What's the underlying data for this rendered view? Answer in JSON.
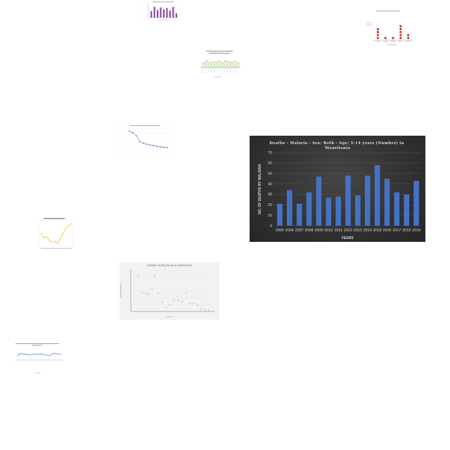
{
  "chart_data": [
    {
      "type": "bar",
      "title": "Deaths - Malaria - Sex: Both - Age: 5-14 years (Number) in Mauritania",
      "xlabel": "YEARS",
      "ylabel": "NO. OF DEATHS BY MALARIA",
      "categories": [
        "2005",
        "2006",
        "2007",
        "2008",
        "2009",
        "2010",
        "2011",
        "2012",
        "2013",
        "2014",
        "2015",
        "2016",
        "2017",
        "2018",
        "2019"
      ],
      "values": [
        21,
        34,
        21,
        32,
        47,
        27,
        28,
        48,
        29,
        48,
        58,
        45,
        32,
        30,
        43
      ],
      "yticks": [
        "0",
        "10",
        "20",
        "30",
        "40",
        "50",
        "60",
        "70"
      ],
      "ylim": [
        0,
        70
      ],
      "grid": true,
      "bar_color": "#4472c4"
    },
    {
      "type": "bar",
      "title": "",
      "categories": [
        "",
        "",
        "",
        "",
        "",
        "",
        "",
        "",
        ""
      ],
      "values": [
        0.5,
        0.85,
        0.6,
        0.8,
        0.65,
        0.75,
        0.55,
        0.85,
        0.35
      ],
      "bar_color": "#8e44ad"
    },
    {
      "type": "scatter",
      "title": "",
      "categories": [
        "",
        "",
        "",
        "",
        ""
      ],
      "values": [
        4,
        1,
        1,
        5,
        2
      ],
      "marker_color": "#c0392b"
    },
    {
      "type": "bar",
      "title": "",
      "values": [
        0.45,
        0.7,
        0.5,
        0.6,
        0.55,
        0.65,
        0.5,
        0.7,
        0.6,
        0.55,
        0.65,
        0.5
      ],
      "bar_color": "#7cb342"
    },
    {
      "type": "line",
      "title": "",
      "values": [
        0.9,
        0.82,
        0.7,
        0.45,
        0.38,
        0.33,
        0.3,
        0.27,
        0.24,
        0.22,
        0.2,
        0.19
      ],
      "line_color": "#5b7db1"
    },
    {
      "type": "line",
      "title": "",
      "values": [
        0.55,
        0.35,
        0.4,
        0.25,
        0.15,
        0.2,
        0.1,
        0.35,
        0.55,
        0.75,
        0.85,
        0.95
      ],
      "line_color": "#f0b400"
    },
    {
      "type": "scatter",
      "title": "Inflation during the year Switzerland",
      "x": [
        1961,
        1964,
        1967,
        1969,
        1972,
        1974,
        1977,
        1980,
        1983,
        1986,
        1989,
        1993,
        1996,
        1999,
        2002,
        2005,
        2008,
        2011,
        2014,
        2017
      ],
      "y": [
        0.92,
        0.45,
        0.44,
        0.42,
        0.55,
        0.9,
        0.44,
        0.2,
        0.08,
        0.13,
        0.25,
        0.26,
        0.22,
        0.45,
        0.18,
        0.18,
        0.12,
        0.03,
        0.0,
        0.0
      ],
      "marker_color": "#7f7f7f"
    },
    {
      "type": "line",
      "title": "",
      "values": [
        0.55,
        0.75,
        0.7,
        0.6,
        0.7,
        0.65,
        0.72,
        0.6,
        0.5,
        0.8,
        0.7,
        0.65
      ],
      "line_color": "#4472c4"
    }
  ]
}
